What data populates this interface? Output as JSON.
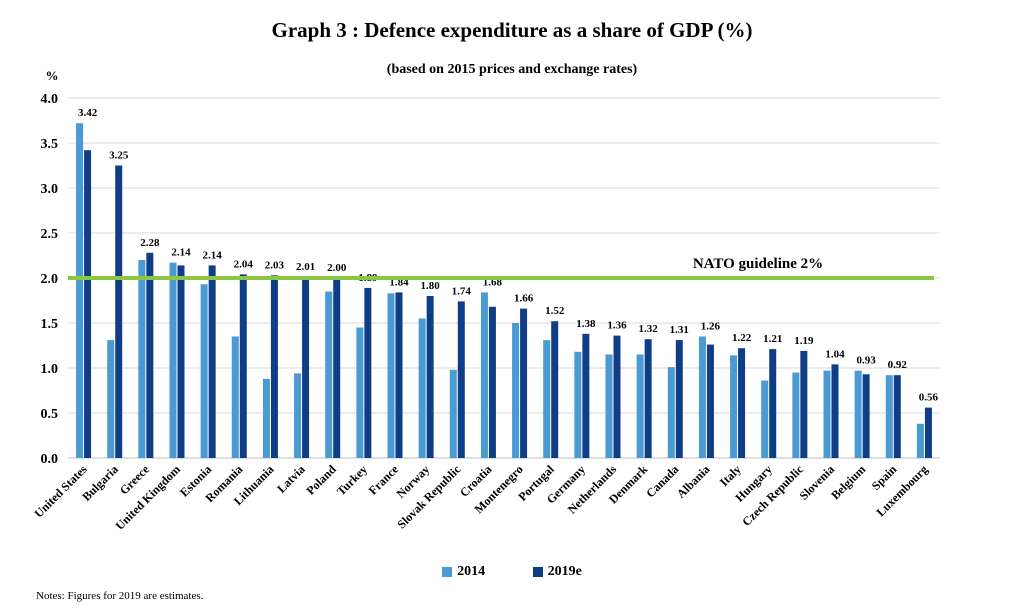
{
  "title": "Graph 3 : Defence expenditure as a share of GDP (%)",
  "subtitle": "(based on 2015 prices and exchange rates)",
  "note": "Notes: Figures for 2019 are estimates.",
  "colors": {
    "s2014": "#4a9ad4",
    "s2019": "#0f3e86",
    "guideline": "#8dc63f",
    "grid": "#d9d9d9"
  },
  "chart_data": {
    "type": "bar",
    "ylabel": "%",
    "ylim": [
      0,
      4.0
    ],
    "yticks": [
      "0.0",
      "0.5",
      "1.0",
      "1.5",
      "2.0",
      "2.5",
      "3.0",
      "3.5",
      "4.0"
    ],
    "grid": true,
    "legend": "bottom",
    "categories": [
      "United States",
      "Bulgaria",
      "Greece",
      "United Kingdom",
      "Estonia",
      "Romania",
      "Lithuania",
      "Latvia",
      "Poland",
      "Turkey",
      "France",
      "Norway",
      "Slovak Republic",
      "Croatia",
      "Montenegro",
      "Portugal",
      "Germany",
      "Netherlands",
      "Denmark",
      "Canada",
      "Albania",
      "Italy",
      "Hungary",
      "Czech Republic",
      "Slovenia",
      "Belgium",
      "Spain",
      "Luxembourg"
    ],
    "series": [
      {
        "name": "2014",
        "values": [
          3.72,
          1.31,
          2.2,
          2.17,
          1.93,
          1.35,
          0.88,
          0.94,
          1.85,
          1.45,
          1.83,
          1.55,
          0.98,
          1.84,
          1.5,
          1.31,
          1.18,
          1.15,
          1.15,
          1.01,
          1.35,
          1.14,
          0.86,
          0.95,
          0.97,
          0.97,
          0.92,
          0.38
        ]
      },
      {
        "name": "2019e",
        "values": [
          3.42,
          3.25,
          2.28,
          2.14,
          2.14,
          2.04,
          2.03,
          2.01,
          2.0,
          1.89,
          1.84,
          1.8,
          1.74,
          1.68,
          1.66,
          1.52,
          1.38,
          1.36,
          1.32,
          1.31,
          1.26,
          1.22,
          1.21,
          1.19,
          1.04,
          0.93,
          0.92,
          0.56
        ],
        "labels": [
          "3.42",
          "3.25",
          "2.28",
          "2.14",
          "2.14",
          "2.04",
          "2.03",
          "2.01",
          "2.00",
          "1.89",
          "1.84",
          "1.80",
          "1.74",
          "1.68",
          "1.66",
          "1.52",
          "1.38",
          "1.36",
          "1.32",
          "1.31",
          "1.26",
          "1.22",
          "1.21",
          "1.19",
          "1.04",
          "0.93",
          "0.92",
          "0.56"
        ]
      }
    ],
    "guideline": {
      "value": 2.0,
      "label": "NATO guideline 2%"
    }
  }
}
